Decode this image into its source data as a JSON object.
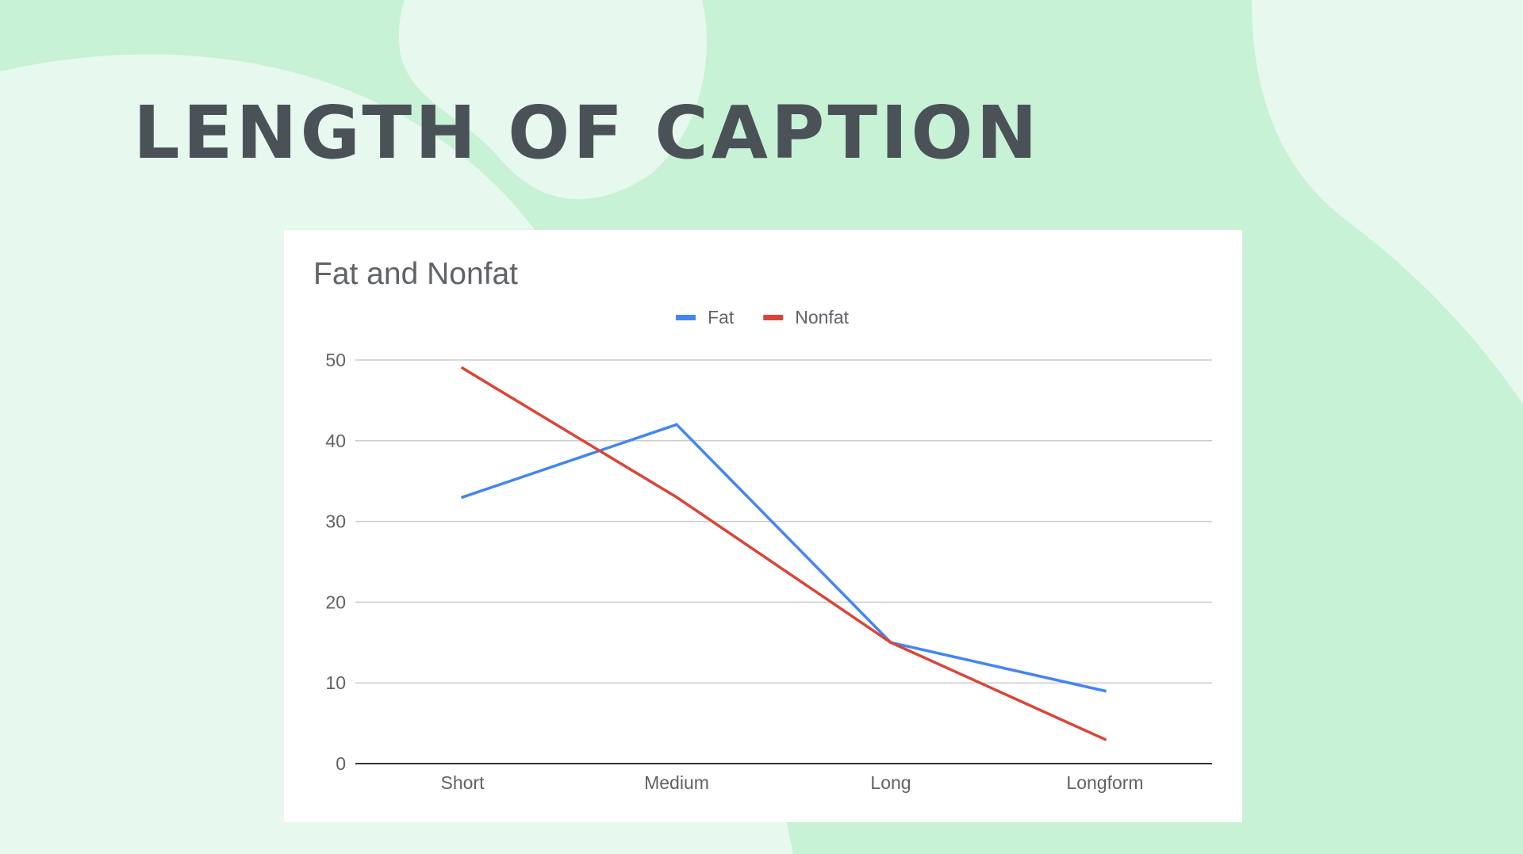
{
  "slide": {
    "title": "LENGTH OF CAPTION"
  },
  "colors": {
    "background": "#c8f2d6",
    "background_light": "#e7f8ee",
    "title_text": "#4b5257",
    "fat_series": "#4285f4",
    "nonfat_series": "#db4437",
    "gridline": "#cccccc",
    "axis_line": "#333333"
  },
  "chart_data": {
    "type": "line",
    "title": "Fat and Nonfat",
    "xlabel": "",
    "ylabel": "",
    "categories": [
      "Short",
      "Medium",
      "Long",
      "Longform"
    ],
    "series": [
      {
        "name": "Fat",
        "values": [
          33,
          42,
          15,
          9
        ],
        "color": "#4285f4"
      },
      {
        "name": "Nonfat",
        "values": [
          49,
          33,
          15,
          3
        ],
        "color": "#db4437"
      }
    ],
    "ylim": [
      0,
      50
    ],
    "yticks": [
      "0",
      "10",
      "20",
      "30",
      "40",
      "50"
    ],
    "grid": true,
    "legend": "top-center"
  }
}
